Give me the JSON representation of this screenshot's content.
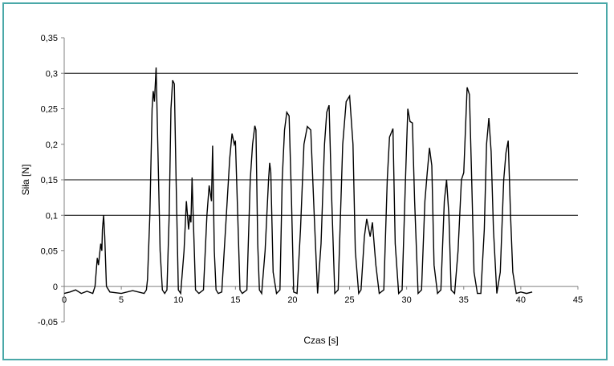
{
  "chart_data": {
    "type": "line",
    "title": "",
    "xlabel": "Czas [s]",
    "ylabel": "Siła [N]",
    "xlim": [
      0,
      45
    ],
    "ylim": [
      -0.05,
      0.35
    ],
    "x_ticks": [
      0,
      5,
      10,
      15,
      20,
      25,
      30,
      35,
      40,
      45
    ],
    "y_ticks": [
      -0.05,
      0,
      0.05,
      0.1,
      0.15,
      0.2,
      0.25,
      0.3,
      0.35
    ],
    "x_tick_labels": [
      "0",
      "5",
      "10",
      "15",
      "20",
      "25",
      "30",
      "35",
      "40",
      "45"
    ],
    "y_tick_labels": [
      "-0,05",
      "0",
      "0,05",
      "0,1",
      "0,15",
      "0,2",
      "0,25",
      "0,3",
      "0,35"
    ],
    "grid": "horizontal major lines at 0,1 / 0,15 / 0,3",
    "line_color": "#000000",
    "series": [
      {
        "x": [
          0,
          0.5,
          1.0,
          1.5,
          2.0,
          2.5,
          2.7,
          2.8,
          2.9,
          3.0,
          3.2,
          3.3,
          3.35,
          3.45,
          3.55,
          3.7,
          4.0,
          5.0,
          6.0,
          7.0,
          7.2,
          7.3,
          7.5,
          7.7,
          7.8,
          7.9,
          8.05,
          8.2,
          8.4,
          8.6,
          8.8,
          9.0,
          9.2,
          9.35,
          9.5,
          9.65,
          9.8,
          10.0,
          10.2,
          10.5,
          10.7,
          10.9,
          11.0,
          11.1,
          11.2,
          11.3,
          11.4,
          11.5,
          11.8,
          12.2,
          12.5,
          12.7,
          12.9,
          13.0,
          13.15,
          13.3,
          13.5,
          13.8,
          14.2,
          14.5,
          14.7,
          14.9,
          15.0,
          15.2,
          15.4,
          15.6,
          16.0,
          16.3,
          16.5,
          16.7,
          16.8,
          16.95,
          17.1,
          17.3,
          17.6,
          17.9,
          18.0,
          18.1,
          18.3,
          18.6,
          18.9,
          19.1,
          19.3,
          19.5,
          19.7,
          19.9,
          20.1,
          20.4,
          20.7,
          21.0,
          21.3,
          21.6,
          21.9,
          22.2,
          22.5,
          22.8,
          23.0,
          23.2,
          23.4,
          23.7,
          24.0,
          24.4,
          24.7,
          25.0,
          25.3,
          25.5,
          25.8,
          26.0,
          26.3,
          26.5,
          26.8,
          27.0,
          27.3,
          27.6,
          28.0,
          28.3,
          28.5,
          28.8,
          29.0,
          29.3,
          29.6,
          29.9,
          30.1,
          30.3,
          30.5,
          30.7,
          31.0,
          31.3,
          31.6,
          31.8,
          32.0,
          32.2,
          32.4,
          32.7,
          33.0,
          33.3,
          33.5,
          33.7,
          33.9,
          34.2,
          34.5,
          34.8,
          35.0,
          35.3,
          35.5,
          35.7,
          35.9,
          36.2,
          36.5,
          36.8,
          37.0,
          37.2,
          37.4,
          37.6,
          37.9,
          38.2,
          38.5,
          38.7,
          38.9,
          39.1,
          39.3,
          39.6,
          40.0,
          40.5,
          41.0
        ],
        "y": [
          -0.01,
          -0.008,
          -0.005,
          -0.01,
          -0.007,
          -0.01,
          0.0,
          0.02,
          0.04,
          0.03,
          0.06,
          0.05,
          0.08,
          0.1,
          0.07,
          0.0,
          -0.008,
          -0.01,
          -0.006,
          -0.01,
          -0.005,
          0.01,
          0.1,
          0.25,
          0.275,
          0.26,
          0.308,
          0.2,
          0.05,
          -0.005,
          -0.01,
          -0.005,
          0.1,
          0.25,
          0.29,
          0.285,
          0.15,
          -0.005,
          -0.01,
          0.05,
          0.12,
          0.08,
          0.1,
          0.09,
          0.153,
          0.1,
          0.05,
          -0.005,
          -0.01,
          -0.005,
          0.1,
          0.142,
          0.12,
          0.198,
          0.05,
          -0.005,
          -0.01,
          -0.008,
          0.1,
          0.18,
          0.215,
          0.2,
          0.205,
          0.1,
          -0.005,
          -0.01,
          -0.005,
          0.15,
          0.2,
          0.226,
          0.22,
          0.06,
          -0.005,
          -0.01,
          0.05,
          0.15,
          0.174,
          0.16,
          0.02,
          -0.01,
          -0.005,
          0.15,
          0.22,
          0.245,
          0.24,
          0.13,
          -0.008,
          -0.01,
          0.08,
          0.2,
          0.225,
          0.22,
          0.1,
          -0.01,
          0.06,
          0.2,
          0.245,
          0.255,
          0.14,
          -0.01,
          -0.005,
          0.2,
          0.26,
          0.268,
          0.2,
          0.05,
          -0.01,
          -0.005,
          0.07,
          0.095,
          0.07,
          0.09,
          0.03,
          -0.01,
          -0.005,
          0.15,
          0.21,
          0.222,
          0.06,
          -0.01,
          -0.005,
          0.15,
          0.25,
          0.232,
          0.23,
          0.12,
          -0.01,
          -0.005,
          0.12,
          0.16,
          0.195,
          0.17,
          0.03,
          -0.01,
          -0.005,
          0.12,
          0.15,
          0.1,
          -0.005,
          -0.01,
          0.05,
          0.15,
          0.16,
          0.28,
          0.27,
          0.15,
          0.02,
          -0.01,
          -0.01,
          0.08,
          0.2,
          0.237,
          0.19,
          0.08,
          -0.01,
          0.02,
          0.15,
          0.188,
          0.205,
          0.1,
          0.02,
          -0.01,
          -0.008,
          -0.01,
          -0.008
        ]
      }
    ]
  }
}
